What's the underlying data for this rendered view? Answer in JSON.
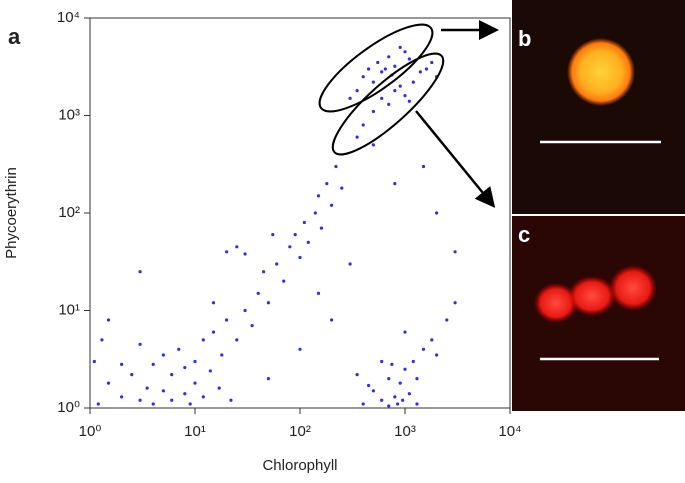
{
  "chart_data": {
    "type": "scatter",
    "panel_labels": [
      "a",
      "b",
      "c"
    ],
    "x_label": "Chlorophyll",
    "y_label": "Phycoerythrin",
    "log_x": true,
    "log_y": true,
    "xlim": [
      1,
      10000
    ],
    "ylim": [
      1,
      10000
    ],
    "xticks": [
      {
        "value": 1,
        "label": "10⁰"
      },
      {
        "value": 10,
        "label": "10¹"
      },
      {
        "value": 100,
        "label": "10²"
      },
      {
        "value": 1000,
        "label": "10³"
      },
      {
        "value": 10000,
        "label": "10⁴"
      }
    ],
    "yticks": [
      {
        "value": 1,
        "label": "10⁰"
      },
      {
        "value": 10,
        "label": "10¹"
      },
      {
        "value": 100,
        "label": "10²"
      },
      {
        "value": 1000,
        "label": "10³"
      },
      {
        "value": 10000,
        "label": "10⁴"
      }
    ],
    "series": [
      {
        "color": "#2b2bff",
        "x": [
          1.2,
          1.5,
          2,
          2.5,
          3,
          3.5,
          4,
          4,
          5,
          5,
          6,
          6,
          7,
          8,
          8,
          9,
          10,
          10,
          12,
          12,
          14,
          15,
          17,
          18,
          20,
          1.1,
          1.3,
          2,
          3,
          22,
          25,
          30,
          35,
          40,
          45,
          50,
          60,
          70,
          80,
          90,
          100,
          110,
          120,
          140,
          150,
          160,
          180,
          200,
          220,
          250,
          20,
          25,
          30,
          15,
          55,
          350,
          400,
          450,
          500,
          550,
          600,
          700,
          800,
          900,
          300,
          650,
          750,
          1000,
          1100,
          500,
          600,
          700,
          800,
          900,
          1000,
          1200,
          1400,
          1600,
          400,
          350,
          1100,
          1800,
          2000,
          400,
          500,
          600,
          700,
          800,
          900,
          1000,
          1100,
          1200,
          1300,
          1500,
          700,
          850,
          950,
          600,
          1000,
          1800,
          2500,
          3000,
          350,
          750,
          1300,
          450,
          2000,
          3,
          1.5,
          200,
          100,
          300,
          2000,
          3000,
          1500,
          50,
          150,
          500,
          800
        ],
        "values": [
          1.1,
          1.8,
          1.3,
          2.2,
          1.2,
          1.6,
          2.8,
          1.1,
          1.5,
          3.5,
          1.2,
          2.2,
          4,
          1.4,
          2.6,
          1.1,
          3,
          1.8,
          5,
          1.3,
          2.4,
          6,
          1.6,
          3.5,
          8,
          3,
          5,
          2.8,
          4.5,
          1.2,
          5,
          10,
          7,
          15,
          25,
          12,
          30,
          20,
          45,
          60,
          35,
          80,
          50,
          100,
          150,
          70,
          200,
          120,
          300,
          180,
          40,
          45,
          38,
          12,
          60,
          1800,
          2500,
          3000,
          2200,
          3500,
          2800,
          4000,
          3200,
          5000,
          1500,
          3000,
          2600,
          4500,
          3800,
          1100,
          1500,
          1300,
          1800,
          2000,
          1600,
          2200,
          2800,
          3000,
          800,
          600,
          1400,
          3500,
          2500,
          1.1,
          1.5,
          1.2,
          2,
          1.3,
          1.8,
          2.5,
          1.4,
          3,
          2,
          4,
          1.05,
          1.1,
          1.2,
          3,
          6,
          5,
          8,
          12,
          2.2,
          2.8,
          1.1,
          1.7,
          3.5,
          25,
          8,
          8,
          4,
          30,
          100,
          40,
          300,
          2,
          15,
          500,
          200
        ]
      }
    ]
  }
}
